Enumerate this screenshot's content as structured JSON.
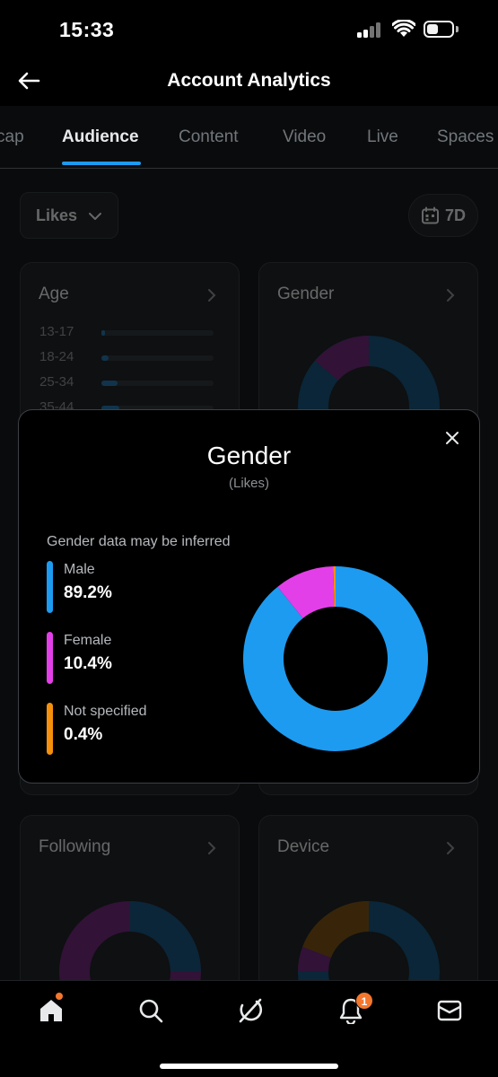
{
  "status_bar": {
    "time": "15:33",
    "icons": [
      "signal-icon",
      "wifi-icon",
      "battery-icon"
    ]
  },
  "header": {
    "title": "Account Analytics",
    "back_icon": "arrow-left-icon"
  },
  "tabs": [
    {
      "label": "cap",
      "active": false
    },
    {
      "label": "Audience",
      "active": true
    },
    {
      "label": "Content",
      "active": false
    },
    {
      "label": "Video",
      "active": false
    },
    {
      "label": "Live",
      "active": false
    },
    {
      "label": "Spaces",
      "active": false
    }
  ],
  "filters": {
    "metric_label": "Likes",
    "date_range_label": "7D"
  },
  "cards": {
    "age": {
      "title": "Age",
      "rows": [
        {
          "label": "13-17",
          "share": 0.01
        },
        {
          "label": "18-24",
          "share": 0.06
        },
        {
          "label": "25-34",
          "share": 0.14
        },
        {
          "label": "35-44",
          "share": 0.16
        }
      ]
    },
    "gender": {
      "title": "Gender"
    },
    "following": {
      "title": "Following"
    },
    "device": {
      "title": "Device"
    }
  },
  "modal": {
    "title": "Gender",
    "subtitle": "(Likes)",
    "note": "Gender data may be inferred",
    "close_icon": "close-icon"
  },
  "chart_data": {
    "type": "pie",
    "categories": [
      "Male",
      "Female",
      "Not specified"
    ],
    "value_labels": [
      "89.2%",
      "10.4%",
      "0.4%"
    ],
    "values": [
      89.2,
      10.4,
      0.4
    ],
    "colors": [
      "#1d9bf0",
      "#e33fe8",
      "#f4900c"
    ],
    "donut": true,
    "legend": "left"
  },
  "colors": {
    "accent": "#1d9bf0",
    "badge": "#f4772e"
  },
  "bottom_nav": {
    "items": [
      "home-icon",
      "search-icon",
      "grok-icon",
      "bell-icon",
      "mail-icon"
    ],
    "notification_count": "1"
  }
}
